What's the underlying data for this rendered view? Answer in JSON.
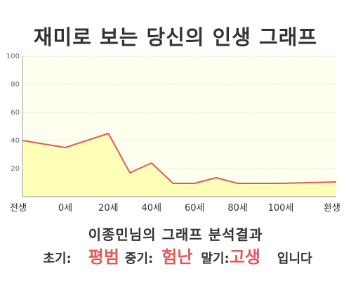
{
  "title": "재미로 보는 당신의 인생 그래프",
  "chart_data": {
    "type": "area",
    "x_categories": [
      "전생",
      "0세",
      "20세",
      "40세",
      "60세",
      "80세",
      "100세",
      "환생"
    ],
    "points": [
      {
        "x": "전생",
        "y": 40
      },
      {
        "x": "0세",
        "y": 35
      },
      {
        "x": "20세",
        "y": 45
      },
      {
        "x": "30세",
        "y": 17
      },
      {
        "x": "40세",
        "y": 24
      },
      {
        "x": "50세",
        "y": 9.5
      },
      {
        "x": "60세",
        "y": 9.5
      },
      {
        "x": "70세",
        "y": 13.5
      },
      {
        "x": "80세",
        "y": 9.5
      },
      {
        "x": "90세",
        "y": 9.5
      },
      {
        "x": "100세",
        "y": 9.5
      },
      {
        "x": "환생",
        "y": 10.5
      }
    ],
    "y_ticks": [
      20,
      40,
      60,
      80,
      100
    ],
    "ylim": [
      0,
      100
    ],
    "grid": true,
    "colors": {
      "line": "#e05a5a",
      "fill": "#ffffb8",
      "plot_bg": "#fffff0",
      "grid": "#dddddd",
      "axis": "#999999"
    }
  },
  "summary": {
    "line1": "이종민님의 그래프 분석결과",
    "early_label": "초기:",
    "early_value": "평범",
    "mid_label": "중기:",
    "mid_value": "험난",
    "late_label": "말기:",
    "late_value": "고생",
    "ending": "입니다"
  }
}
